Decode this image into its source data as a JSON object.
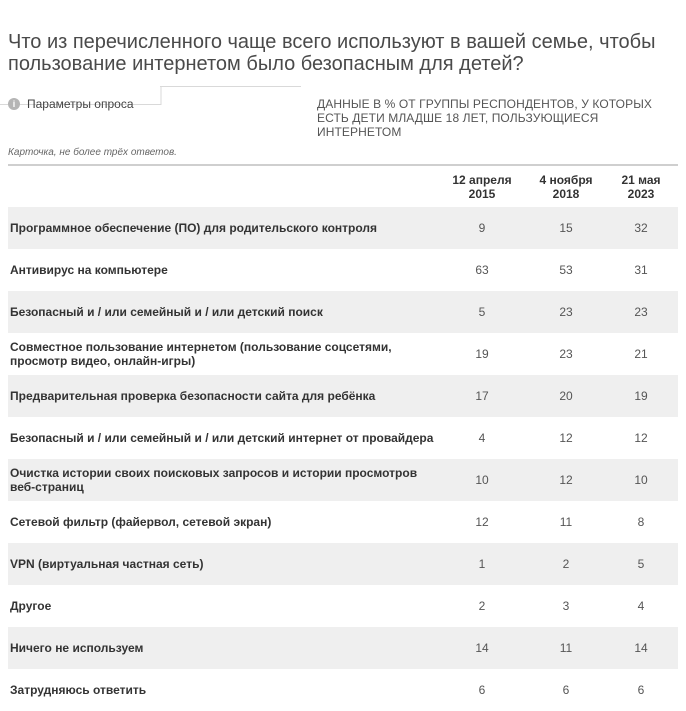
{
  "title": "Что из перечисленного чаще всего используют в вашей семье, чтобы пользование интернетом было безопасным для детей?",
  "survey_params": {
    "icon": "info-icon",
    "label": "Параметры опроса"
  },
  "data_note": "ДАННЫЕ В % ОТ ГРУППЫ РЕСПОНДЕНТОВ, У КОТОРЫХ ЕСТЬ ДЕТИ МЛАДШЕ 18 ЛЕТ, ПОЛЬЗУЮЩИЕСЯ ИНТЕРНЕТОМ",
  "card_note": "Карточка, не более трёх ответов.",
  "columns": [
    {
      "date": "12 апреля",
      "year": "2015"
    },
    {
      "date": "4 ноября",
      "year": "2018"
    },
    {
      "date": "21 мая",
      "year": "2023"
    }
  ],
  "rows": [
    {
      "label": "Программное обеспечение (ПО) для родительского контроля",
      "values": [
        "9",
        "15",
        "32"
      ]
    },
    {
      "label": "Антивирус на компьютере",
      "values": [
        "63",
        "53",
        "31"
      ]
    },
    {
      "label": "Безопасный и / или семейный и / или детский поиск",
      "values": [
        "5",
        "23",
        "23"
      ]
    },
    {
      "label": "Совместное пользование интернетом (пользование соцсетями, просмотр видео, онлайн-игры)",
      "values": [
        "19",
        "23",
        "21"
      ]
    },
    {
      "label": "Предварительная проверка безопасности сайта для ребёнка",
      "values": [
        "17",
        "20",
        "19"
      ]
    },
    {
      "label": "Безопасный и / или семейный и / или детский интернет от провайдера",
      "values": [
        "4",
        "12",
        "12"
      ]
    },
    {
      "label": "Очистка истории своих поисковых запросов и истории просмотров веб-страниц",
      "values": [
        "10",
        "12",
        "10"
      ]
    },
    {
      "label": "Сетевой фильтр (файервол, сетевой экран)",
      "values": [
        "12",
        "11",
        "8"
      ]
    },
    {
      "label": "VPN (виртуальная частная сеть)",
      "values": [
        "1",
        "2",
        "5"
      ]
    },
    {
      "label": "Другое",
      "values": [
        "2",
        "3",
        "4"
      ]
    },
    {
      "label": "Ничего не используем",
      "values": [
        "14",
        "11",
        "14"
      ]
    },
    {
      "label": "Затрудняюсь ответить",
      "values": [
        "6",
        "6",
        "6"
      ]
    }
  ]
}
